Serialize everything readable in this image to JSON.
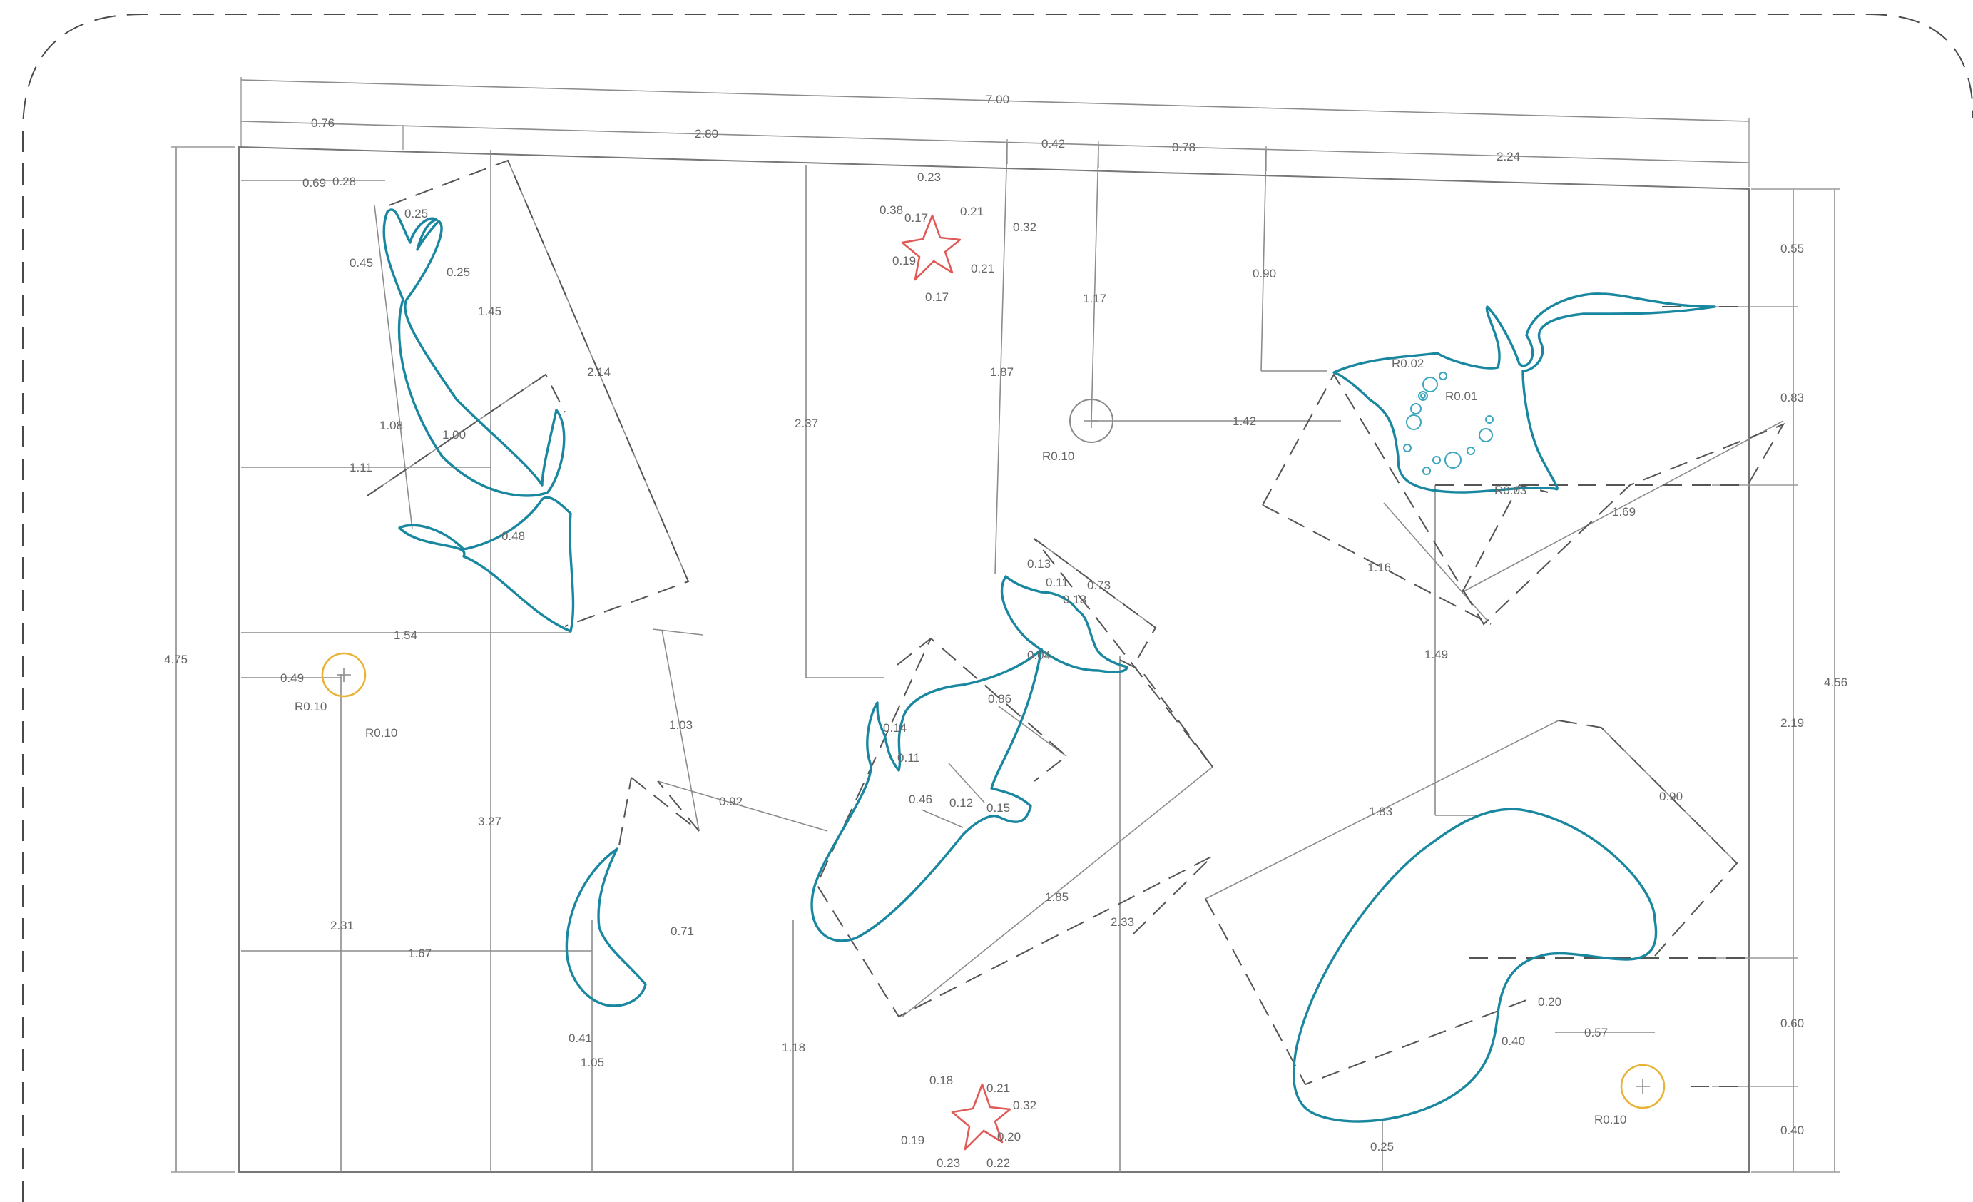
{
  "labels": {
    "d_700": "7.00",
    "d_076": "0.76",
    "d_280": "2.80",
    "d_042": "0.42",
    "d_078": "0.78",
    "d_224": "2.24",
    "d_069": "0.69",
    "d_028": "0.28",
    "d_025a": "0.25",
    "d_045": "0.45",
    "d_025b": "0.25",
    "d_145": "1.45",
    "d_214": "2.14",
    "d_108": "1.08",
    "d_100": "1.00",
    "d_111": "1.11",
    "d_048": "0.48",
    "d_475": "4.75",
    "d_154": "1.54",
    "d_049": "0.49",
    "r_010a": "R0.10",
    "r_010b": "R0.10",
    "d_103": "1.03",
    "d_327": "3.27",
    "d_092": "0.92",
    "d_231": "2.31",
    "d_167": "1.67",
    "d_071": "0.71",
    "d_041": "0.41",
    "d_105": "1.05",
    "d_023": "0.23",
    "d_038": "0.38",
    "d_017a": "0.17",
    "d_021a": "0.21",
    "d_032a": "0.32",
    "d_019a": "0.19",
    "d_021b": "0.21",
    "d_017b": "0.17",
    "d_237": "2.37",
    "d_187": "1.87",
    "d_117": "1.17",
    "r_010c": "R0.10",
    "d_142": "1.42",
    "d_090a": "0.90",
    "d_055": "0.55",
    "d_083": "0.83",
    "r_002": "R0.02",
    "r_001": "R0.01",
    "r_003": "R0.03",
    "d_169": "1.69",
    "d_116": "1.16",
    "d_149": "1.49",
    "d_456": "4.56",
    "d_219": "2.19",
    "d_013a": "0.13",
    "d_011a": "0.11",
    "d_073": "0.73",
    "d_013b": "0.13",
    "d_004": "0.04",
    "d_086": "0.86",
    "d_014": "0.14",
    "d_011b": "0.11",
    "d_046": "0.46",
    "d_012": "0.12",
    "d_015": "0.15",
    "d_185": "1.85",
    "d_233": "2.33",
    "d_118": "1.18",
    "d_018": "0.18",
    "d_021c": "0.21",
    "d_032b": "0.32",
    "d_019b": "0.19",
    "d_020a": "0.20",
    "d_023b": "0.23",
    "d_022": "0.22",
    "d_183": "1.83",
    "d_090b": "0.90",
    "d_020b": "0.20",
    "d_040a": "0.40",
    "d_057": "0.57",
    "d_060": "0.60",
    "d_040b": "0.40",
    "r_010d": "R0.10",
    "d_025c": "0.25"
  },
  "colors": {
    "profile": "#1a87a0",
    "star": "#e05a58",
    "hole": "#e8b438"
  }
}
